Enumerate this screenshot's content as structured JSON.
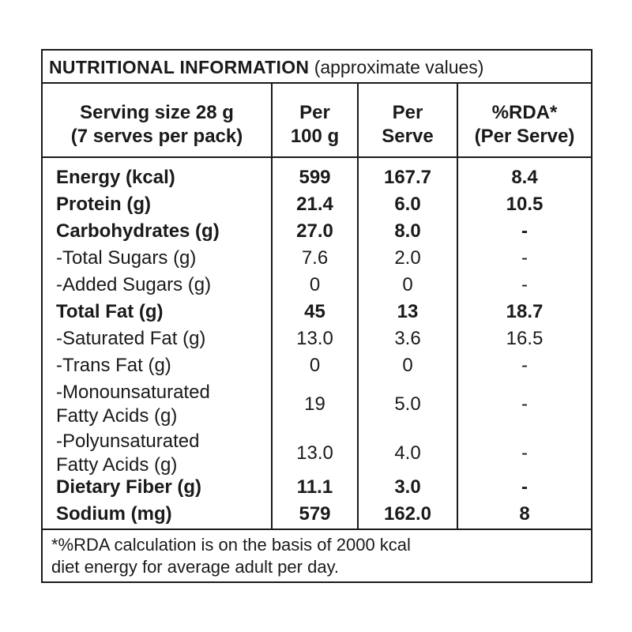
{
  "title": {
    "main": "NUTRITIONAL INFORMATION",
    "sub": "(approximate values)"
  },
  "headers": {
    "serving_line1": "Serving size 28 g",
    "serving_line2": "(7 serves per pack)",
    "per100_line1": "Per",
    "per100_line2": "100 g",
    "perserve_line1": "Per",
    "perserve_line2": "Serve",
    "rda_line1": "%RDA*",
    "rda_line2": "(Per Serve)"
  },
  "rows": [
    {
      "label1": "Energy (kcal)",
      "label2": "",
      "bold": true,
      "per100": "599",
      "perserve": "167.7",
      "rda": "8.4"
    },
    {
      "label1": "Protein (g)",
      "label2": "",
      "bold": true,
      "per100": "21.4",
      "perserve": "6.0",
      "rda": "10.5"
    },
    {
      "label1": "Carbohydrates (g)",
      "label2": "",
      "bold": true,
      "per100": "27.0",
      "perserve": "8.0",
      "rda": "-"
    },
    {
      "label1": "-Total Sugars (g)",
      "label2": "",
      "bold": false,
      "per100": "7.6",
      "perserve": "2.0",
      "rda": "-"
    },
    {
      "label1": "-Added Sugars (g)",
      "label2": "",
      "bold": false,
      "per100": "0",
      "perserve": "0",
      "rda": "-"
    },
    {
      "label1": "Total Fat (g)",
      "label2": "",
      "bold": true,
      "per100": "45",
      "perserve": "13",
      "rda": "18.7"
    },
    {
      "label1": "-Saturated Fat (g)",
      "label2": "",
      "bold": false,
      "per100": "13.0",
      "perserve": "3.6",
      "rda": "16.5"
    },
    {
      "label1": "-Trans Fat (g)",
      "label2": "",
      "bold": false,
      "per100": "0",
      "perserve": "0",
      "rda": "-"
    },
    {
      "label1": "-Monounsaturated",
      "label2": "Fatty Acids (g)",
      "bold": false,
      "per100": "19",
      "perserve": "5.0",
      "rda": "-"
    },
    {
      "label1": "-Polyunsaturated",
      "label2": "Fatty Acids (g)",
      "bold": false,
      "per100": "13.0",
      "perserve": "4.0",
      "rda": "-"
    },
    {
      "label1": "Dietary Fiber (g)",
      "label2": "",
      "bold": true,
      "per100": "11.1",
      "perserve": "3.0",
      "rda": "-"
    },
    {
      "label1": "Sodium (mg)",
      "label2": "",
      "bold": true,
      "per100": "579",
      "perserve": "162.0",
      "rda": "8"
    }
  ],
  "footnote": {
    "line1": "*%RDA calculation is on the basis of 2000 kcal",
    "line2": "diet energy for average adult per day."
  }
}
